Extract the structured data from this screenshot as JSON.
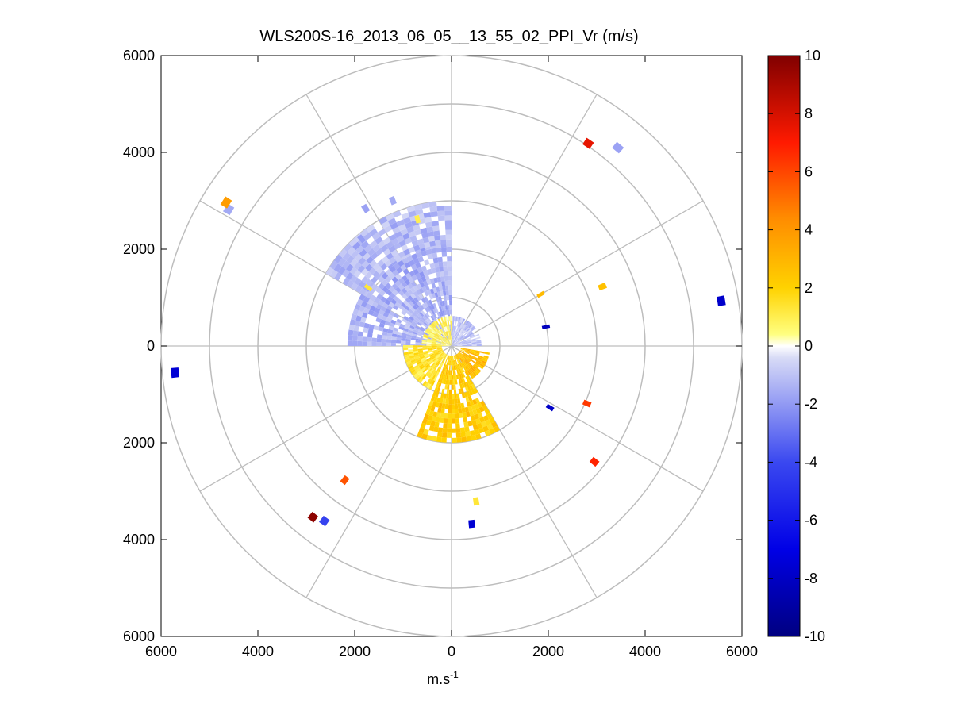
{
  "chart_data": {
    "type": "polar_ppi_heatmap",
    "title": "WLS200S-16_2013_06_05__13_55_02_PPI_Vr (m/s)",
    "xlabel_base": "m.s",
    "xlabel_sup": "-1",
    "ylabel": "",
    "xlim": [
      -6000,
      6000
    ],
    "ylim": [
      -6000,
      6000
    ],
    "x_ticks": [
      -6000,
      -4000,
      -2000,
      0,
      2000,
      4000,
      6000
    ],
    "x_tick_labels": [
      "6000",
      "4000",
      "2000",
      "0",
      "2000",
      "4000",
      "6000"
    ],
    "y_ticks": [
      6000,
      4000,
      2000,
      0,
      -2000,
      -4000,
      -6000
    ],
    "y_tick_labels": [
      "6000",
      "4000",
      "2000",
      "0",
      "2000",
      "4000",
      "6000"
    ],
    "grid": true,
    "range_rings_m": [
      1000,
      2000,
      3000,
      4000,
      5000,
      6000
    ],
    "spoke_angles_deg": [
      0,
      30,
      60,
      90,
      120,
      150,
      180,
      210,
      240,
      270,
      300,
      330
    ],
    "colorbar": {
      "min": -10,
      "max": 10,
      "ticks": [
        10,
        8,
        6,
        4,
        2,
        0,
        -2,
        -4,
        -6,
        -8,
        -10
      ],
      "tick_labels": [
        "10",
        "8",
        "6",
        "4",
        "2",
        "0",
        "-2",
        "-4",
        "-6",
        "-8",
        "-10"
      ],
      "placement": "right"
    },
    "sectors": [
      {
        "az_from": 270,
        "az_to": 360,
        "r_from": 150,
        "r_to": 2100,
        "value": -1.4
      },
      {
        "az_from": 300,
        "az_to": 360,
        "r_from": 2100,
        "r_to": 3000,
        "value": -1.2
      },
      {
        "az_from": 270,
        "az_to": 360,
        "r_from": 20,
        "r_to": 600,
        "value": 0.7
      },
      {
        "az_from": 0,
        "az_to": 90,
        "r_from": 20,
        "r_to": 600,
        "value": -1.0
      },
      {
        "az_from": 205,
        "az_to": 270,
        "r_from": 200,
        "r_to": 1000,
        "value": 1.4
      },
      {
        "az_from": 150,
        "az_to": 200,
        "r_from": 200,
        "r_to": 2000,
        "value": 2.2
      },
      {
        "az_from": 100,
        "az_to": 150,
        "r_from": 200,
        "r_to": 800,
        "value": 2.8
      }
    ],
    "gates": [
      {
        "az": 34,
        "range_m": 5050,
        "value": 7.6
      },
      {
        "az": 40,
        "range_m": 5350,
        "value": -1.8
      },
      {
        "az": 80.5,
        "range_m": 5650,
        "value": -7.8
      },
      {
        "az": 264.5,
        "range_m": 5740,
        "value": -7.5
      },
      {
        "az": 301.5,
        "range_m": 5400,
        "value": -1.6
      },
      {
        "az": 302.5,
        "range_m": 5520,
        "value": 3.8
      },
      {
        "az": 129,
        "range_m": 3800,
        "value": 6.8
      },
      {
        "az": 216,
        "range_m": 4470,
        "value": -4.2
      },
      {
        "az": 219,
        "range_m": 4550,
        "value": 9.7
      },
      {
        "az": 218.5,
        "range_m": 3540,
        "value": 5.7
      },
      {
        "az": 173.5,
        "range_m": 3700,
        "value": -7.6
      },
      {
        "az": 171,
        "range_m": 3250,
        "value": 1.3
      },
      {
        "az": 122,
        "range_m": 2400,
        "value": -7.9
      },
      {
        "az": 113,
        "range_m": 3040,
        "value": 6.3
      },
      {
        "az": 68.5,
        "range_m": 3350,
        "value": 2.6
      },
      {
        "az": 60,
        "range_m": 2130,
        "value": 2.8
      },
      {
        "az": 78.5,
        "range_m": 1990,
        "value": -8.2
      },
      {
        "az": 305,
        "range_m": 2100,
        "value": 1.3
      },
      {
        "az": 345,
        "range_m": 2710,
        "value": 1.0
      },
      {
        "az": 328,
        "range_m": 3350,
        "value": -1.8
      },
      {
        "az": 338,
        "range_m": 3240,
        "value": -1.6
      },
      {
        "az": 320,
        "range_m": 2890,
        "value": -1.9
      }
    ]
  }
}
